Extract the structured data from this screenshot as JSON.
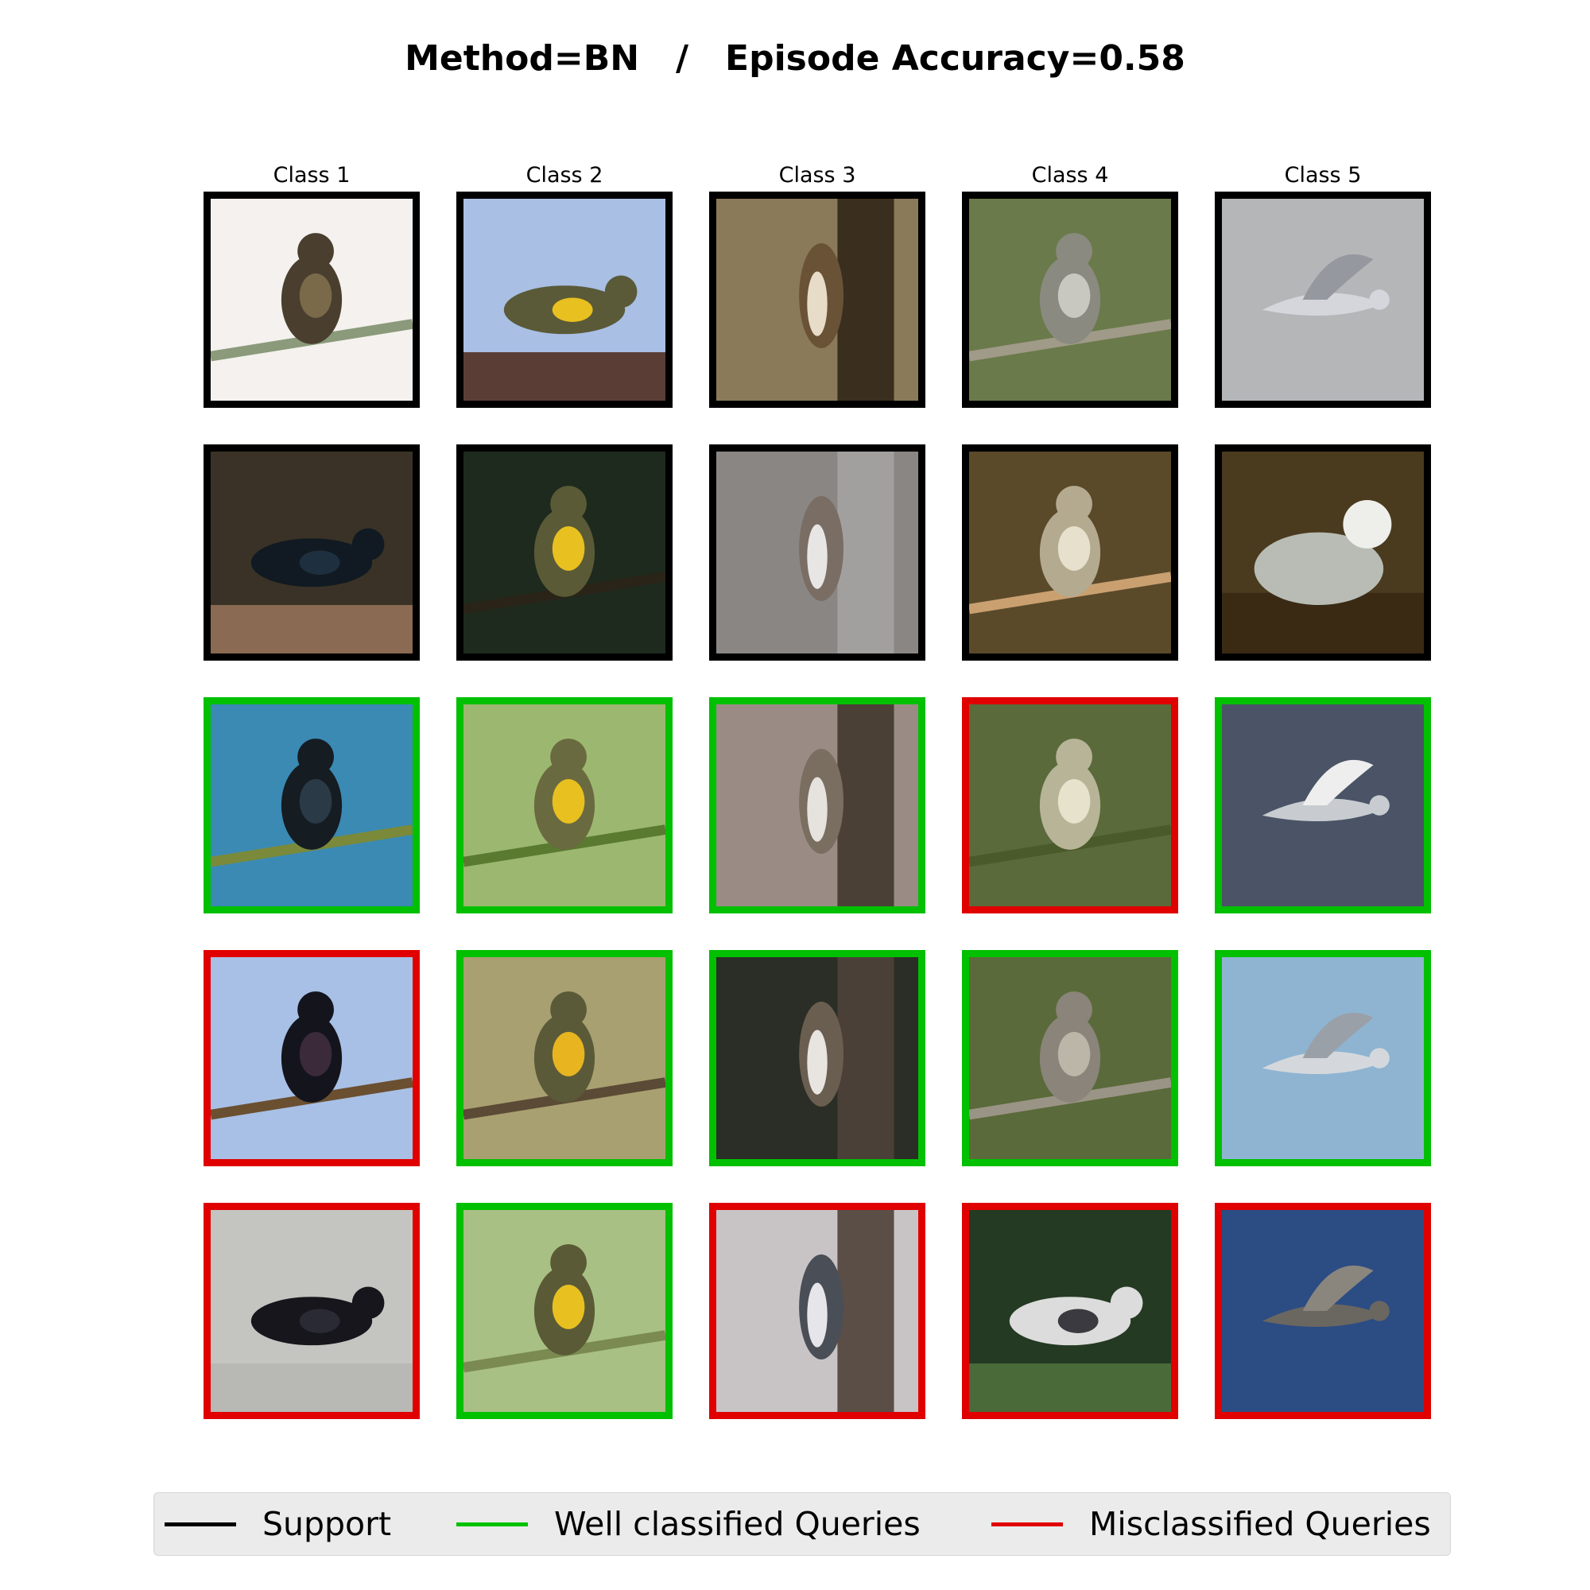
{
  "title": "Method=BN   /   Episode Accuracy=0.58",
  "colors": {
    "support": "#000000",
    "well": "#00c000",
    "mis": "#e00000"
  },
  "columns": [
    "Class 1",
    "Class 2",
    "Class 3",
    "Class 4",
    "Class 5"
  ],
  "rows": [
    [
      {
        "status": "support",
        "scene": {
          "bg": "#f4f1ee",
          "bird": "#4a3f2e",
          "accent": "#7a6a4a",
          "ground": "#8a9a7a",
          "shape": "perch"
        }
      },
      {
        "status": "support",
        "scene": {
          "bg": "#a9bfe4",
          "bird": "#5a5a38",
          "accent": "#e8c020",
          "ground": "#5a3e36",
          "shape": "flat"
        }
      },
      {
        "status": "support",
        "scene": {
          "bg": "#8a7a5a",
          "bird": "#6a5236",
          "accent": "#e6dcc8",
          "ground": "#3a2e1e",
          "shape": "cling"
        }
      },
      {
        "status": "support",
        "scene": {
          "bg": "#6a7a4a",
          "bird": "#8a8a80",
          "accent": "#c8c8c0",
          "ground": "#a09a88",
          "shape": "perch"
        }
      },
      {
        "status": "support",
        "scene": {
          "bg": "#b4b6b8",
          "bird": "#d4d6dc",
          "accent": "#9698a0",
          "ground": "#b4b6b8",
          "shape": "fly"
        }
      }
    ],
    [
      {
        "status": "support",
        "scene": {
          "bg": "#3a3226",
          "bird": "#111a22",
          "accent": "#1e3040",
          "ground": "#8a6a52",
          "shape": "flat"
        }
      },
      {
        "status": "support",
        "scene": {
          "bg": "#1e2a1e",
          "bird": "#5a5a36",
          "accent": "#e8c020",
          "ground": "#2a2418",
          "shape": "perch"
        }
      },
      {
        "status": "support",
        "scene": {
          "bg": "#8a8684",
          "bird": "#7a6e64",
          "accent": "#e8e6e4",
          "ground": "#a2a09e",
          "shape": "cling"
        }
      },
      {
        "status": "support",
        "scene": {
          "bg": "#5a4a2a",
          "bird": "#b4aa90",
          "accent": "#e6e0cc",
          "ground": "#caa070",
          "shape": "perch"
        }
      },
      {
        "status": "support",
        "scene": {
          "bg": "#4a3a1e",
          "bird": "#b8bcb4",
          "accent": "#eeeeea",
          "ground": "#3a2a14",
          "shape": "sit"
        }
      }
    ],
    [
      {
        "status": "well",
        "scene": {
          "bg": "#3a8ab4",
          "bird": "#151c22",
          "accent": "#2a3a46",
          "ground": "#7a8a3a",
          "shape": "perch"
        }
      },
      {
        "status": "well",
        "scene": {
          "bg": "#9cb870",
          "bird": "#6a6a40",
          "accent": "#e8c020",
          "ground": "#5a7a30",
          "shape": "perch"
        }
      },
      {
        "status": "well",
        "scene": {
          "bg": "#9a8c84",
          "bird": "#7a6e60",
          "accent": "#e6e2de",
          "ground": "#4a4036",
          "shape": "cling"
        }
      },
      {
        "status": "mis",
        "scene": {
          "bg": "#5a6a3a",
          "bird": "#b8b498",
          "accent": "#e6e2cc",
          "ground": "#4a5a2a",
          "shape": "perch"
        }
      },
      {
        "status": "well",
        "scene": {
          "bg": "#4a5466",
          "bird": "#c8ccd0",
          "accent": "#eeeeee",
          "ground": "#3a4454",
          "shape": "fly"
        }
      }
    ],
    [
      {
        "status": "mis",
        "scene": {
          "bg": "#a8c0e6",
          "bird": "#14141c",
          "accent": "#3a2a3a",
          "ground": "#6a5030",
          "shape": "perch"
        }
      },
      {
        "status": "well",
        "scene": {
          "bg": "#a8a070",
          "bird": "#5a5a38",
          "accent": "#e8b420",
          "ground": "#5a4a36",
          "shape": "perch"
        }
      },
      {
        "status": "well",
        "scene": {
          "bg": "#2a2e26",
          "bird": "#6a5e50",
          "accent": "#e8e4e0",
          "ground": "#4a4038",
          "shape": "cling"
        }
      },
      {
        "status": "well",
        "scene": {
          "bg": "#5a6a3a",
          "bird": "#8a847a",
          "accent": "#bcb6a8",
          "ground": "#9a9486",
          "shape": "perch"
        }
      },
      {
        "status": "well",
        "scene": {
          "bg": "#8eb4d2",
          "bird": "#d4d8dc",
          "accent": "#9aa0a8",
          "ground": "#8eb4d2",
          "shape": "fly"
        }
      }
    ],
    [
      {
        "status": "mis",
        "scene": {
          "bg": "#c4c4c0",
          "bird": "#16161c",
          "accent": "#2a2a34",
          "ground": "#b8b8b4",
          "shape": "flat"
        }
      },
      {
        "status": "well",
        "scene": {
          "bg": "#a8c084",
          "bird": "#5a5a36",
          "accent": "#e8c020",
          "ground": "#7a8a50",
          "shape": "perch"
        }
      },
      {
        "status": "mis",
        "scene": {
          "bg": "#c8c4c6",
          "bird": "#4a4e56",
          "accent": "#e6e6ea",
          "ground": "#5a4e46",
          "shape": "cling"
        }
      },
      {
        "status": "mis",
        "scene": {
          "bg": "#243a22",
          "bird": "#dcdcdc",
          "accent": "#3a3a40",
          "ground": "#4a6a3a",
          "shape": "flat"
        }
      },
      {
        "status": "mis",
        "scene": {
          "bg": "#2c4c84",
          "bird": "#6a6660",
          "accent": "#8a867e",
          "ground": "#2a4676",
          "shape": "fly"
        }
      }
    ]
  ],
  "legend": {
    "support": "Support",
    "well": "Well classified Queries",
    "mis": "Misclassified Queries"
  }
}
